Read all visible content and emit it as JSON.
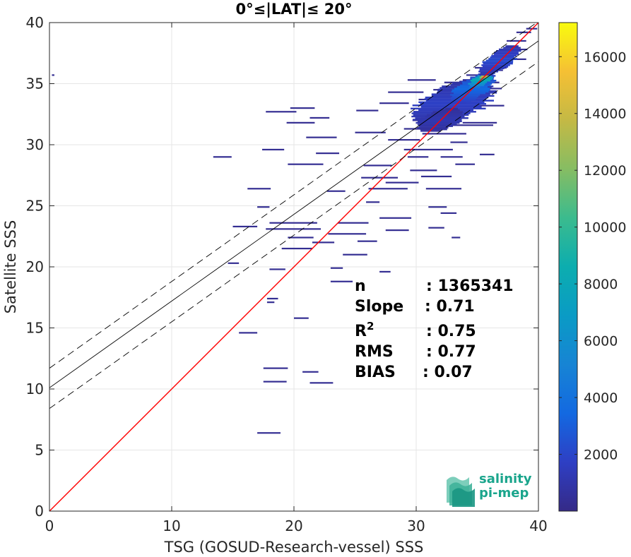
{
  "chart_data": {
    "type": "heatmap",
    "title": "0°≤|LAT|≤ 20°",
    "xlabel": "TSG (GOSUD-Research-vessel) SSS",
    "ylabel": "Satellite SSS",
    "xlim": [
      0,
      40
    ],
    "ylim": [
      0,
      40
    ],
    "xticks": [
      "0",
      "10",
      "20",
      "30",
      "40"
    ],
    "yticks": [
      "0",
      "5",
      "10",
      "15",
      "20",
      "25",
      "30",
      "35",
      "40"
    ],
    "grid": true,
    "colorbar": {
      "range": [
        0,
        17200
      ],
      "ticks": [
        "2000",
        "4000",
        "6000",
        "8000",
        "10000",
        "12000",
        "14000",
        "16000"
      ],
      "colormap": "parula"
    },
    "lines": [
      {
        "kind": "one-to-one",
        "color": "#ff0000",
        "x": [
          0,
          40
        ],
        "y": [
          0,
          40
        ]
      },
      {
        "kind": "fit",
        "color": "#000000",
        "slope": 0.71,
        "intercept": 10.1
      },
      {
        "kind": "fit-upper",
        "color": "#000000",
        "dash": true,
        "slope": 0.71,
        "intercept": 11.7
      },
      {
        "kind": "fit-lower",
        "color": "#000000",
        "dash": true,
        "slope": 0.71,
        "intercept": 8.4
      }
    ],
    "stats": [
      {
        "label": "n",
        "value": ": 1365341"
      },
      {
        "label": "Slope",
        "value": ": 0.71"
      },
      {
        "label": "R",
        "sup": "2",
        "value": ": 0.75"
      },
      {
        "label": "RMS",
        "value": ": 0.77"
      },
      {
        "label": "BIAS",
        "value": ": 0.07"
      }
    ],
    "segments": [
      [
        17.0,
        6.4,
        1.9
      ],
      [
        17.5,
        10.6,
        1.9
      ],
      [
        17.5,
        11.7,
        2.0
      ],
      [
        20.7,
        11.4,
        1.3
      ],
      [
        21.3,
        10.5,
        1.9
      ],
      [
        15.5,
        14.6,
        1.5
      ],
      [
        20.0,
        15.8,
        1.2
      ],
      [
        17.8,
        17.4,
        0.9
      ],
      [
        17.8,
        17.1,
        0.6
      ],
      [
        23.0,
        18.8,
        1.8
      ],
      [
        18.0,
        19.8,
        1.3
      ],
      [
        23.0,
        19.9,
        1.0
      ],
      [
        27.0,
        19.6,
        0.9
      ],
      [
        14.6,
        20.3,
        0.9
      ],
      [
        19.0,
        21.5,
        2.5
      ],
      [
        24.0,
        21.0,
        2.0
      ],
      [
        21.5,
        22.0,
        1.8
      ],
      [
        19.5,
        22.4,
        2.1
      ],
      [
        22.8,
        22.7,
        3.1
      ],
      [
        25.2,
        22.1,
        1.6
      ],
      [
        17.7,
        23.1,
        4.5
      ],
      [
        18.0,
        23.6,
        3.9
      ],
      [
        23.6,
        23.6,
        2.5
      ],
      [
        27.5,
        23.0,
        1.9
      ],
      [
        31.0,
        23.2,
        1.3
      ],
      [
        32.9,
        22.4,
        0.7
      ],
      [
        15.0,
        23.3,
        2.0
      ],
      [
        27.0,
        24.0,
        2.6
      ],
      [
        32.0,
        24.4,
        1.3
      ],
      [
        31.0,
        24.9,
        1.5
      ],
      [
        25.9,
        25.3,
        1.1
      ],
      [
        17.0,
        24.9,
        1.0
      ],
      [
        16.2,
        26.4,
        1.9
      ],
      [
        22.7,
        26.2,
        1.5
      ],
      [
        26.1,
        26.4,
        3.2
      ],
      [
        30.8,
        26.4,
        2.9
      ],
      [
        27.5,
        26.9,
        2.7
      ],
      [
        25.5,
        27.3,
        3.0
      ],
      [
        30.4,
        27.4,
        2.5
      ],
      [
        19.5,
        28.4,
        2.9
      ],
      [
        25.7,
        28.3,
        2.3
      ],
      [
        29.5,
        27.9,
        2.2
      ],
      [
        33.2,
        28.4,
        1.6
      ],
      [
        32.0,
        29.0,
        1.8
      ],
      [
        29.3,
        29.0,
        1.7
      ],
      [
        35.2,
        29.2,
        1.2
      ],
      [
        13.4,
        29.0,
        1.5
      ],
      [
        17.4,
        29.6,
        1.8
      ],
      [
        21.8,
        29.3,
        1.9
      ],
      [
        29.0,
        29.6,
        4.0
      ],
      [
        32.8,
        30.2,
        1.4
      ],
      [
        27.7,
        30.4,
        2.6
      ],
      [
        21.0,
        30.6,
        2.5
      ],
      [
        30.5,
        30.9,
        3.6
      ],
      [
        19.4,
        31.8,
        2.3
      ],
      [
        25.0,
        31.0,
        2.5
      ],
      [
        29.0,
        31.3,
        2.3
      ],
      [
        32.3,
        31.6,
        4.0
      ],
      [
        17.7,
        32.7,
        2.5
      ],
      [
        25.1,
        32.8,
        1.8
      ],
      [
        29.7,
        32.0,
        2.6
      ],
      [
        33.8,
        31.8,
        2.8
      ],
      [
        21.3,
        32.2,
        1.6
      ],
      [
        19.7,
        33.0,
        2.0
      ],
      [
        27.0,
        33.4,
        2.4
      ],
      [
        30.2,
        33.7,
        3.9
      ],
      [
        34.0,
        33.2,
        3.2
      ],
      [
        27.7,
        34.3,
        2.9
      ],
      [
        31.4,
        34.5,
        3.2
      ],
      [
        34.1,
        34.6,
        2.9
      ],
      [
        32.3,
        35.1,
        4.5
      ],
      [
        29.3,
        35.3,
        2.3
      ],
      [
        34.1,
        35.7,
        1.9
      ],
      [
        35.9,
        36.1,
        1.2
      ],
      [
        34.8,
        36.3,
        2.6
      ],
      [
        36.5,
        37.0,
        2.5
      ],
      [
        37.4,
        37.8,
        1.7
      ],
      [
        37.4,
        38.5,
        1.6
      ],
      [
        38.2,
        39.2,
        1.2
      ],
      [
        39.0,
        39.5,
        0.9
      ],
      [
        0.2,
        35.7,
        0.2
      ]
    ],
    "clusters": [
      {
        "cx": 33.0,
        "cy": 33.4,
        "rx": 3.2,
        "ry": 2.0,
        "density": 1800
      },
      {
        "cx": 34.6,
        "cy": 34.6,
        "rx": 1.6,
        "ry": 1.3,
        "density": 3600
      },
      {
        "cx": 35.3,
        "cy": 35.3,
        "rx": 0.9,
        "ry": 0.7,
        "density": 8500
      },
      {
        "cx": 35.6,
        "cy": 35.6,
        "rx": 0.4,
        "ry": 0.35,
        "density": 14500
      },
      {
        "cx": 36.8,
        "cy": 36.9,
        "rx": 1.4,
        "ry": 1.3,
        "density": 2200
      },
      {
        "cx": 32.0,
        "cy": 32.0,
        "rx": 1.8,
        "ry": 1.0,
        "density": 1200
      }
    ],
    "logo_text": [
      "salinity",
      "pi-mep"
    ]
  }
}
